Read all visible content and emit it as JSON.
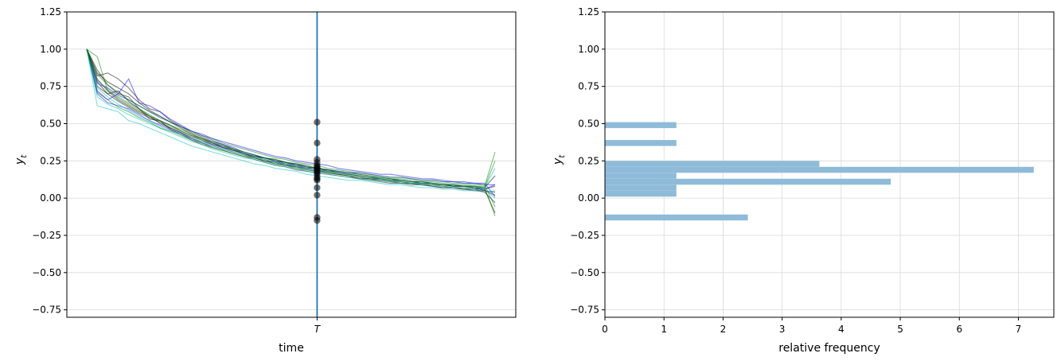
{
  "chart_data": [
    {
      "type": "line",
      "xlabel": "time",
      "ylabel": "y_t",
      "ylabel_main": "y",
      "ylabel_sub": "t",
      "xtick_label": "T",
      "ylim": [
        -0.8,
        1.25
      ],
      "yticks": [
        "1.25",
        "1.00",
        "0.75",
        "0.50",
        "0.25",
        "0.00",
        "−0.25",
        "−0.50",
        "−0.75"
      ],
      "ytick_values": [
        1.25,
        1.0,
        0.75,
        0.5,
        0.25,
        0.0,
        -0.25,
        -0.5,
        -0.75
      ],
      "grid": "horizontal",
      "n_steps": 40,
      "t_marker_step": 22,
      "series_colors": [
        "#0000ff",
        "#00bfbf",
        "#008000",
        "#000000"
      ],
      "series": [
        {
          "color": "#000000",
          "values": [
            1.0,
            0.82,
            0.84,
            0.8,
            0.74,
            0.66,
            0.6,
            0.58,
            0.52,
            0.48,
            0.44,
            0.41,
            0.38,
            0.36,
            0.33,
            0.3,
            0.27,
            0.25,
            0.23,
            0.22,
            0.21,
            0.2,
            0.21,
            0.18,
            0.17,
            0.16,
            0.15,
            0.14,
            0.13,
            0.12,
            0.12,
            0.11,
            0.1,
            0.1,
            0.09,
            0.08,
            0.08,
            0.07,
            0.05,
            0.02
          ]
        },
        {
          "color": "#000000",
          "values": [
            1.0,
            0.78,
            0.7,
            0.72,
            0.65,
            0.6,
            0.55,
            0.5,
            0.47,
            0.44,
            0.4,
            0.37,
            0.35,
            0.33,
            0.31,
            0.29,
            0.27,
            0.25,
            0.24,
            0.22,
            0.2,
            0.19,
            0.18,
            0.17,
            0.16,
            0.15,
            0.13,
            0.13,
            0.12,
            0.11,
            0.1,
            0.1,
            0.09,
            0.08,
            0.07,
            0.07,
            0.06,
            0.06,
            0.04,
            -0.03
          ]
        },
        {
          "color": "#000000",
          "values": [
            1.0,
            0.86,
            0.76,
            0.7,
            0.68,
            0.6,
            0.53,
            0.52,
            0.46,
            0.43,
            0.39,
            0.36,
            0.34,
            0.32,
            0.3,
            0.28,
            0.26,
            0.24,
            0.22,
            0.21,
            0.19,
            0.18,
            0.17,
            0.16,
            0.15,
            0.14,
            0.13,
            0.12,
            0.11,
            0.1,
            0.1,
            0.09,
            0.09,
            0.08,
            0.07,
            0.07,
            0.06,
            0.05,
            0.05,
            0.04
          ]
        },
        {
          "color": "#000000",
          "values": [
            1.0,
            0.75,
            0.7,
            0.65,
            0.61,
            0.57,
            0.54,
            0.51,
            0.47,
            0.44,
            0.41,
            0.39,
            0.36,
            0.34,
            0.32,
            0.3,
            0.28,
            0.27,
            0.25,
            0.24,
            0.22,
            0.21,
            0.2,
            0.19,
            0.17,
            0.16,
            0.15,
            0.14,
            0.13,
            0.12,
            0.12,
            0.11,
            0.1,
            0.1,
            0.09,
            0.08,
            0.08,
            0.07,
            0.06,
            -0.1
          ]
        },
        {
          "color": "#000000",
          "values": [
            1.0,
            0.8,
            0.72,
            0.66,
            0.62,
            0.58,
            0.55,
            0.52,
            0.49,
            0.45,
            0.42,
            0.4,
            0.37,
            0.35,
            0.33,
            0.31,
            0.29,
            0.27,
            0.26,
            0.24,
            0.23,
            0.22,
            0.2,
            0.19,
            0.18,
            0.17,
            0.16,
            0.15,
            0.14,
            0.13,
            0.12,
            0.11,
            0.11,
            0.1,
            0.09,
            0.09,
            0.08,
            0.08,
            0.07,
            0.15
          ]
        },
        {
          "color": "#000000",
          "values": [
            1.0,
            0.84,
            0.78,
            0.74,
            0.7,
            0.64,
            0.59,
            0.55,
            0.51,
            0.47,
            0.43,
            0.4,
            0.37,
            0.34,
            0.32,
            0.3,
            0.28,
            0.26,
            0.24,
            0.23,
            0.21,
            0.2,
            0.19,
            0.17,
            0.16,
            0.15,
            0.14,
            0.13,
            0.12,
            0.11,
            0.11,
            0.1,
            0.09,
            0.09,
            0.08,
            0.07,
            0.07,
            0.06,
            0.06,
            0.08
          ]
        },
        {
          "color": "#0000ff",
          "values": [
            1.0,
            0.72,
            0.66,
            0.7,
            0.8,
            0.64,
            0.62,
            0.58,
            0.53,
            0.49,
            0.45,
            0.42,
            0.39,
            0.36,
            0.34,
            0.31,
            0.29,
            0.27,
            0.25,
            0.23,
            0.22,
            0.2,
            0.19,
            0.18,
            0.17,
            0.16,
            0.15,
            0.14,
            0.13,
            0.12,
            0.12,
            0.11,
            0.1,
            0.1,
            0.09,
            0.08,
            0.08,
            0.07,
            0.06,
            0.09
          ]
        },
        {
          "color": "#0000ff",
          "values": [
            1.0,
            0.77,
            0.74,
            0.69,
            0.66,
            0.62,
            0.58,
            0.54,
            0.51,
            0.48,
            0.45,
            0.43,
            0.4,
            0.38,
            0.36,
            0.34,
            0.32,
            0.3,
            0.28,
            0.27,
            0.25,
            0.24,
            0.23,
            0.22,
            0.2,
            0.19,
            0.18,
            0.17,
            0.16,
            0.16,
            0.15,
            0.14,
            0.13,
            0.13,
            0.12,
            0.11,
            0.11,
            0.1,
            0.1,
            0.01
          ]
        },
        {
          "color": "#0000ff",
          "values": [
            1.0,
            0.7,
            0.64,
            0.62,
            0.6,
            0.56,
            0.52,
            0.49,
            0.46,
            0.43,
            0.4,
            0.38,
            0.36,
            0.34,
            0.32,
            0.3,
            0.28,
            0.27,
            0.25,
            0.24,
            0.23,
            0.21,
            0.2,
            0.19,
            0.18,
            0.17,
            0.17,
            0.16,
            0.15,
            0.14,
            0.14,
            0.13,
            0.12,
            0.12,
            0.11,
            0.11,
            0.1,
            0.1,
            0.09,
            0.09
          ]
        },
        {
          "color": "#00bfbf",
          "values": [
            1.0,
            0.62,
            0.6,
            0.58,
            0.52,
            0.5,
            0.47,
            0.44,
            0.41,
            0.38,
            0.35,
            0.33,
            0.31,
            0.29,
            0.27,
            0.25,
            0.23,
            0.22,
            0.2,
            0.19,
            0.18,
            0.16,
            0.15,
            0.14,
            0.13,
            0.12,
            0.12,
            0.11,
            0.1,
            0.09,
            0.09,
            0.08,
            0.07,
            0.07,
            0.06,
            0.06,
            0.05,
            0.05,
            0.04,
            0.05
          ]
        },
        {
          "color": "#00bfbf",
          "values": [
            1.0,
            0.68,
            0.63,
            0.6,
            0.56,
            0.53,
            0.5,
            0.47,
            0.44,
            0.41,
            0.38,
            0.36,
            0.33,
            0.31,
            0.29,
            0.27,
            0.26,
            0.24,
            0.22,
            0.21,
            0.2,
            0.18,
            0.17,
            0.16,
            0.15,
            0.14,
            0.13,
            0.12,
            0.12,
            0.11,
            0.1,
            0.1,
            0.09,
            0.08,
            0.08,
            0.07,
            0.07,
            0.06,
            0.06,
            0.0
          ]
        },
        {
          "color": "#00bfbf",
          "values": [
            1.0,
            0.74,
            0.68,
            0.63,
            0.59,
            0.55,
            0.52,
            0.48,
            0.45,
            0.43,
            0.4,
            0.38,
            0.35,
            0.33,
            0.31,
            0.29,
            0.27,
            0.26,
            0.24,
            0.23,
            0.21,
            0.2,
            0.19,
            0.18,
            0.17,
            0.16,
            0.15,
            0.14,
            0.13,
            0.12,
            0.12,
            0.11,
            0.1,
            0.1,
            0.09,
            0.09,
            0.08,
            0.08,
            0.07,
            0.2
          ]
        },
        {
          "color": "#008000",
          "values": [
            1.0,
            0.95,
            0.72,
            0.68,
            0.64,
            0.6,
            0.56,
            0.52,
            0.49,
            0.46,
            0.43,
            0.4,
            0.38,
            0.35,
            0.33,
            0.31,
            0.29,
            0.27,
            0.26,
            0.24,
            0.23,
            0.21,
            0.2,
            0.19,
            0.18,
            0.17,
            0.16,
            0.15,
            0.14,
            0.13,
            0.13,
            0.12,
            0.11,
            0.11,
            0.1,
            0.09,
            0.09,
            0.08,
            0.08,
            0.31
          ]
        },
        {
          "color": "#008000",
          "values": [
            1.0,
            0.79,
            0.73,
            0.67,
            0.63,
            0.59,
            0.55,
            0.52,
            0.48,
            0.45,
            0.42,
            0.39,
            0.37,
            0.35,
            0.32,
            0.3,
            0.28,
            0.27,
            0.25,
            0.24,
            0.22,
            0.21,
            0.2,
            0.18,
            0.17,
            0.16,
            0.15,
            0.14,
            0.14,
            0.13,
            0.12,
            0.11,
            0.11,
            0.1,
            0.09,
            0.09,
            0.08,
            0.08,
            0.07,
            -0.12
          ]
        },
        {
          "color": "#008000",
          "values": [
            1.0,
            0.71,
            0.66,
            0.61,
            0.58,
            0.54,
            0.51,
            0.47,
            0.45,
            0.42,
            0.39,
            0.37,
            0.34,
            0.32,
            0.3,
            0.28,
            0.27,
            0.25,
            0.23,
            0.22,
            0.21,
            0.19,
            0.18,
            0.17,
            0.16,
            0.15,
            0.14,
            0.13,
            0.13,
            0.12,
            0.11,
            0.1,
            0.1,
            0.09,
            0.09,
            0.08,
            0.08,
            0.07,
            0.07,
            0.25
          ]
        },
        {
          "color": "#008000",
          "values": [
            1.0,
            0.83,
            0.76,
            0.71,
            0.66,
            0.62,
            0.58,
            0.55,
            0.51,
            0.48,
            0.45,
            0.42,
            0.4,
            0.37,
            0.35,
            0.33,
            0.31,
            0.29,
            0.27,
            0.26,
            0.24,
            0.23,
            0.22,
            0.2,
            0.19,
            0.18,
            0.17,
            0.16,
            0.15,
            0.14,
            0.14,
            0.13,
            0.12,
            0.12,
            0.11,
            0.1,
            0.1,
            0.09,
            0.09,
            -0.06
          ]
        }
      ],
      "points_at_T": [
        0.51,
        0.37,
        0.26,
        0.24,
        0.22,
        0.21,
        0.2,
        0.19,
        0.18,
        0.17,
        0.16,
        0.14,
        0.13,
        0.12,
        0.07,
        0.02,
        -0.13,
        -0.15
      ],
      "line_color": "#1f77b4",
      "point_color": "#000000"
    },
    {
      "type": "bar",
      "orientation": "horizontal",
      "xlabel": "relative frequency",
      "ylabel": "y_t",
      "ylabel_main": "y",
      "ylabel_sub": "t",
      "xlim": [
        0,
        7.6
      ],
      "xticks": [
        0,
        1,
        2,
        3,
        4,
        5,
        6,
        7
      ],
      "ylim": [
        -0.8,
        1.25
      ],
      "yticks": [
        "1.25",
        "1.00",
        "0.75",
        "0.50",
        "0.25",
        "0.00",
        "−0.25",
        "−0.50",
        "−0.75"
      ],
      "ytick_values": [
        1.25,
        1.0,
        0.75,
        0.5,
        0.25,
        0.0,
        -0.25,
        -0.5,
        -0.75
      ],
      "grid": "both",
      "bar_color": "#8fbbd9",
      "bins": [
        {
          "y0": -0.15,
          "y1": -0.11,
          "freq": 2.42
        },
        {
          "y0": 0.01,
          "y1": 0.05,
          "freq": 1.21
        },
        {
          "y0": 0.05,
          "y1": 0.09,
          "freq": 1.21
        },
        {
          "y0": 0.09,
          "y1": 0.13,
          "freq": 4.84
        },
        {
          "y0": 0.13,
          "y1": 0.17,
          "freq": 1.21
        },
        {
          "y0": 0.17,
          "y1": 0.21,
          "freq": 7.26
        },
        {
          "y0": 0.21,
          "y1": 0.25,
          "freq": 3.63
        },
        {
          "y0": 0.35,
          "y1": 0.39,
          "freq": 1.21
        },
        {
          "y0": 0.47,
          "y1": 0.51,
          "freq": 1.21
        }
      ]
    }
  ]
}
